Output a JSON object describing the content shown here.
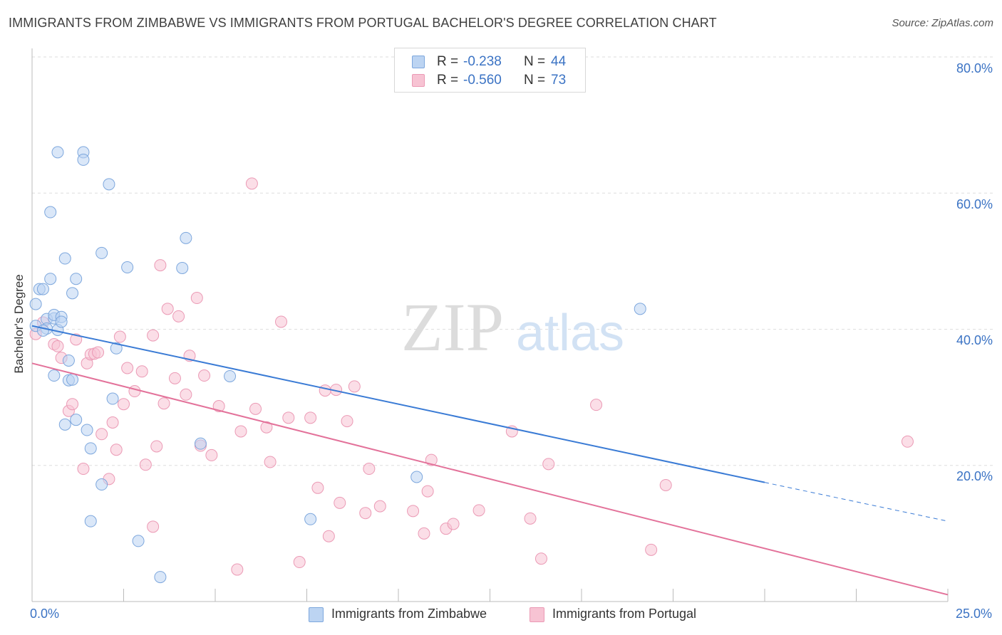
{
  "header": {
    "title": "IMMIGRANTS FROM ZIMBABWE VS IMMIGRANTS FROM PORTUGAL BACHELOR'S DEGREE CORRELATION CHART",
    "source": "Source: ZipAtlas.com"
  },
  "watermark": {
    "zip": "ZIP",
    "atlas": "atlas"
  },
  "stats_legend": {
    "zimbabwe": {
      "r_label": "R =",
      "r_value": "-0.238",
      "n_label": "N =",
      "n_value": "44"
    },
    "portugal": {
      "r_label": "R =",
      "r_value": "-0.560",
      "n_label": "N =",
      "n_value": "73"
    }
  },
  "chart_data": {
    "type": "scatter",
    "title": "IMMIGRANTS FROM ZIMBABWE VS IMMIGRANTS FROM PORTUGAL BACHELOR'S DEGREE CORRELATION CHART",
    "xlabel": "",
    "ylabel": "Bachelor's Degree",
    "xlim": [
      0,
      25
    ],
    "ylim": [
      0,
      80
    ],
    "x_tick_labels": {
      "min": "0.0%",
      "max": "25.0%"
    },
    "y_ticks": [
      20,
      40,
      60,
      80
    ],
    "y_tick_labels": [
      "20.0%",
      "40.0%",
      "60.0%",
      "80.0%"
    ],
    "grid": "horizontal dashed",
    "legend": "bottom-center",
    "colors": {
      "zimbabwe_fill": "#bcd4f2",
      "zimbabwe_stroke": "#7da7dd",
      "zimbabwe_line": "#3a7bd5",
      "portugal_fill": "#f7c3d3",
      "portugal_stroke": "#eb9ab5",
      "portugal_line": "#e3729a"
    },
    "series": [
      {
        "name": "Immigrants from Zimbabwe",
        "trend": {
          "x0": 0,
          "y0": 40.5,
          "x1": 20,
          "y1": 17.5,
          "dashed_to_x": 25,
          "dashed_to_y": 11.8
        },
        "points": [
          [
            0.1,
            43.7
          ],
          [
            0.1,
            40.5
          ],
          [
            0.2,
            45.9
          ],
          [
            0.3,
            45.9
          ],
          [
            0.4,
            41.5
          ],
          [
            0.4,
            40.1
          ],
          [
            0.5,
            47.4
          ],
          [
            0.6,
            41.6
          ],
          [
            0.6,
            42.1
          ],
          [
            0.6,
            33.2
          ],
          [
            0.7,
            39.9
          ],
          [
            0.8,
            41.8
          ],
          [
            0.8,
            41.1
          ],
          [
            0.7,
            66.0
          ],
          [
            0.9,
            50.4
          ],
          [
            0.9,
            26.0
          ],
          [
            1.0,
            35.4
          ],
          [
            1.0,
            32.5
          ],
          [
            1.1,
            32.6
          ],
          [
            1.1,
            45.3
          ],
          [
            1.2,
            47.4
          ],
          [
            1.2,
            26.7
          ],
          [
            1.4,
            66.0
          ],
          [
            1.4,
            64.9
          ],
          [
            1.5,
            25.2
          ],
          [
            1.6,
            22.5
          ],
          [
            1.9,
            51.2
          ],
          [
            1.9,
            17.2
          ],
          [
            2.1,
            61.3
          ],
          [
            2.2,
            29.8
          ],
          [
            2.3,
            37.2
          ],
          [
            2.6,
            49.1
          ],
          [
            2.9,
            8.9
          ],
          [
            3.5,
            3.6
          ],
          [
            4.1,
            49.0
          ],
          [
            4.2,
            53.4
          ],
          [
            4.6,
            23.2
          ],
          [
            1.6,
            11.8
          ],
          [
            5.4,
            33.1
          ],
          [
            7.6,
            12.1
          ],
          [
            10.5,
            18.3
          ],
          [
            16.6,
            43.0
          ],
          [
            0.5,
            57.2
          ],
          [
            0.3,
            39.8
          ]
        ]
      },
      {
        "name": "Immigrants from Portugal",
        "trend": {
          "x0": 0,
          "y0": 35.0,
          "x1": 25,
          "y1": 1.0
        },
        "points": [
          [
            0.1,
            39.3
          ],
          [
            0.3,
            41.0
          ],
          [
            0.6,
            37.8
          ],
          [
            0.7,
            37.5
          ],
          [
            0.8,
            35.8
          ],
          [
            1.0,
            28.0
          ],
          [
            1.1,
            29.0
          ],
          [
            1.2,
            38.5
          ],
          [
            1.4,
            19.5
          ],
          [
            1.5,
            35.0
          ],
          [
            1.6,
            36.3
          ],
          [
            1.7,
            36.4
          ],
          [
            1.8,
            36.6
          ],
          [
            1.9,
            24.6
          ],
          [
            2.1,
            18.0
          ],
          [
            2.2,
            26.3
          ],
          [
            2.3,
            22.3
          ],
          [
            2.4,
            38.9
          ],
          [
            2.5,
            29.0
          ],
          [
            2.6,
            34.3
          ],
          [
            2.8,
            30.9
          ],
          [
            3.0,
            33.8
          ],
          [
            3.1,
            20.1
          ],
          [
            3.3,
            11.0
          ],
          [
            3.3,
            39.1
          ],
          [
            3.5,
            49.4
          ],
          [
            3.6,
            29.1
          ],
          [
            3.7,
            43.0
          ],
          [
            3.9,
            32.8
          ],
          [
            4.0,
            41.9
          ],
          [
            4.2,
            30.4
          ],
          [
            4.3,
            36.1
          ],
          [
            4.5,
            44.6
          ],
          [
            4.6,
            22.9
          ],
          [
            4.7,
            33.2
          ],
          [
            4.9,
            21.5
          ],
          [
            5.1,
            28.7
          ],
          [
            5.6,
            4.7
          ],
          [
            5.7,
            25.0
          ],
          [
            6.0,
            61.4
          ],
          [
            6.1,
            28.3
          ],
          [
            6.4,
            25.6
          ],
          [
            6.5,
            20.5
          ],
          [
            6.8,
            41.1
          ],
          [
            7.0,
            27.0
          ],
          [
            7.3,
            5.8
          ],
          [
            7.6,
            27.0
          ],
          [
            7.8,
            16.7
          ],
          [
            8.0,
            31.0
          ],
          [
            8.1,
            9.6
          ],
          [
            8.3,
            31.1
          ],
          [
            8.4,
            14.5
          ],
          [
            8.6,
            26.5
          ],
          [
            8.8,
            31.6
          ],
          [
            9.1,
            13.0
          ],
          [
            9.2,
            19.5
          ],
          [
            9.5,
            14.0
          ],
          [
            10.4,
            13.3
          ],
          [
            10.7,
            10.0
          ],
          [
            10.8,
            16.2
          ],
          [
            10.9,
            20.8
          ],
          [
            11.3,
            10.7
          ],
          [
            11.5,
            11.4
          ],
          [
            12.2,
            13.4
          ],
          [
            13.1,
            25.0
          ],
          [
            13.6,
            12.2
          ],
          [
            13.9,
            6.3
          ],
          [
            14.1,
            20.2
          ],
          [
            15.4,
            28.9
          ],
          [
            16.9,
            7.6
          ],
          [
            17.3,
            17.1
          ],
          [
            23.9,
            23.5
          ],
          [
            3.4,
            22.8
          ]
        ]
      }
    ]
  },
  "bottom_legend": {
    "zimbabwe_label": "Immigrants from Zimbabwe",
    "portugal_label": "Immigrants from Portugal"
  }
}
